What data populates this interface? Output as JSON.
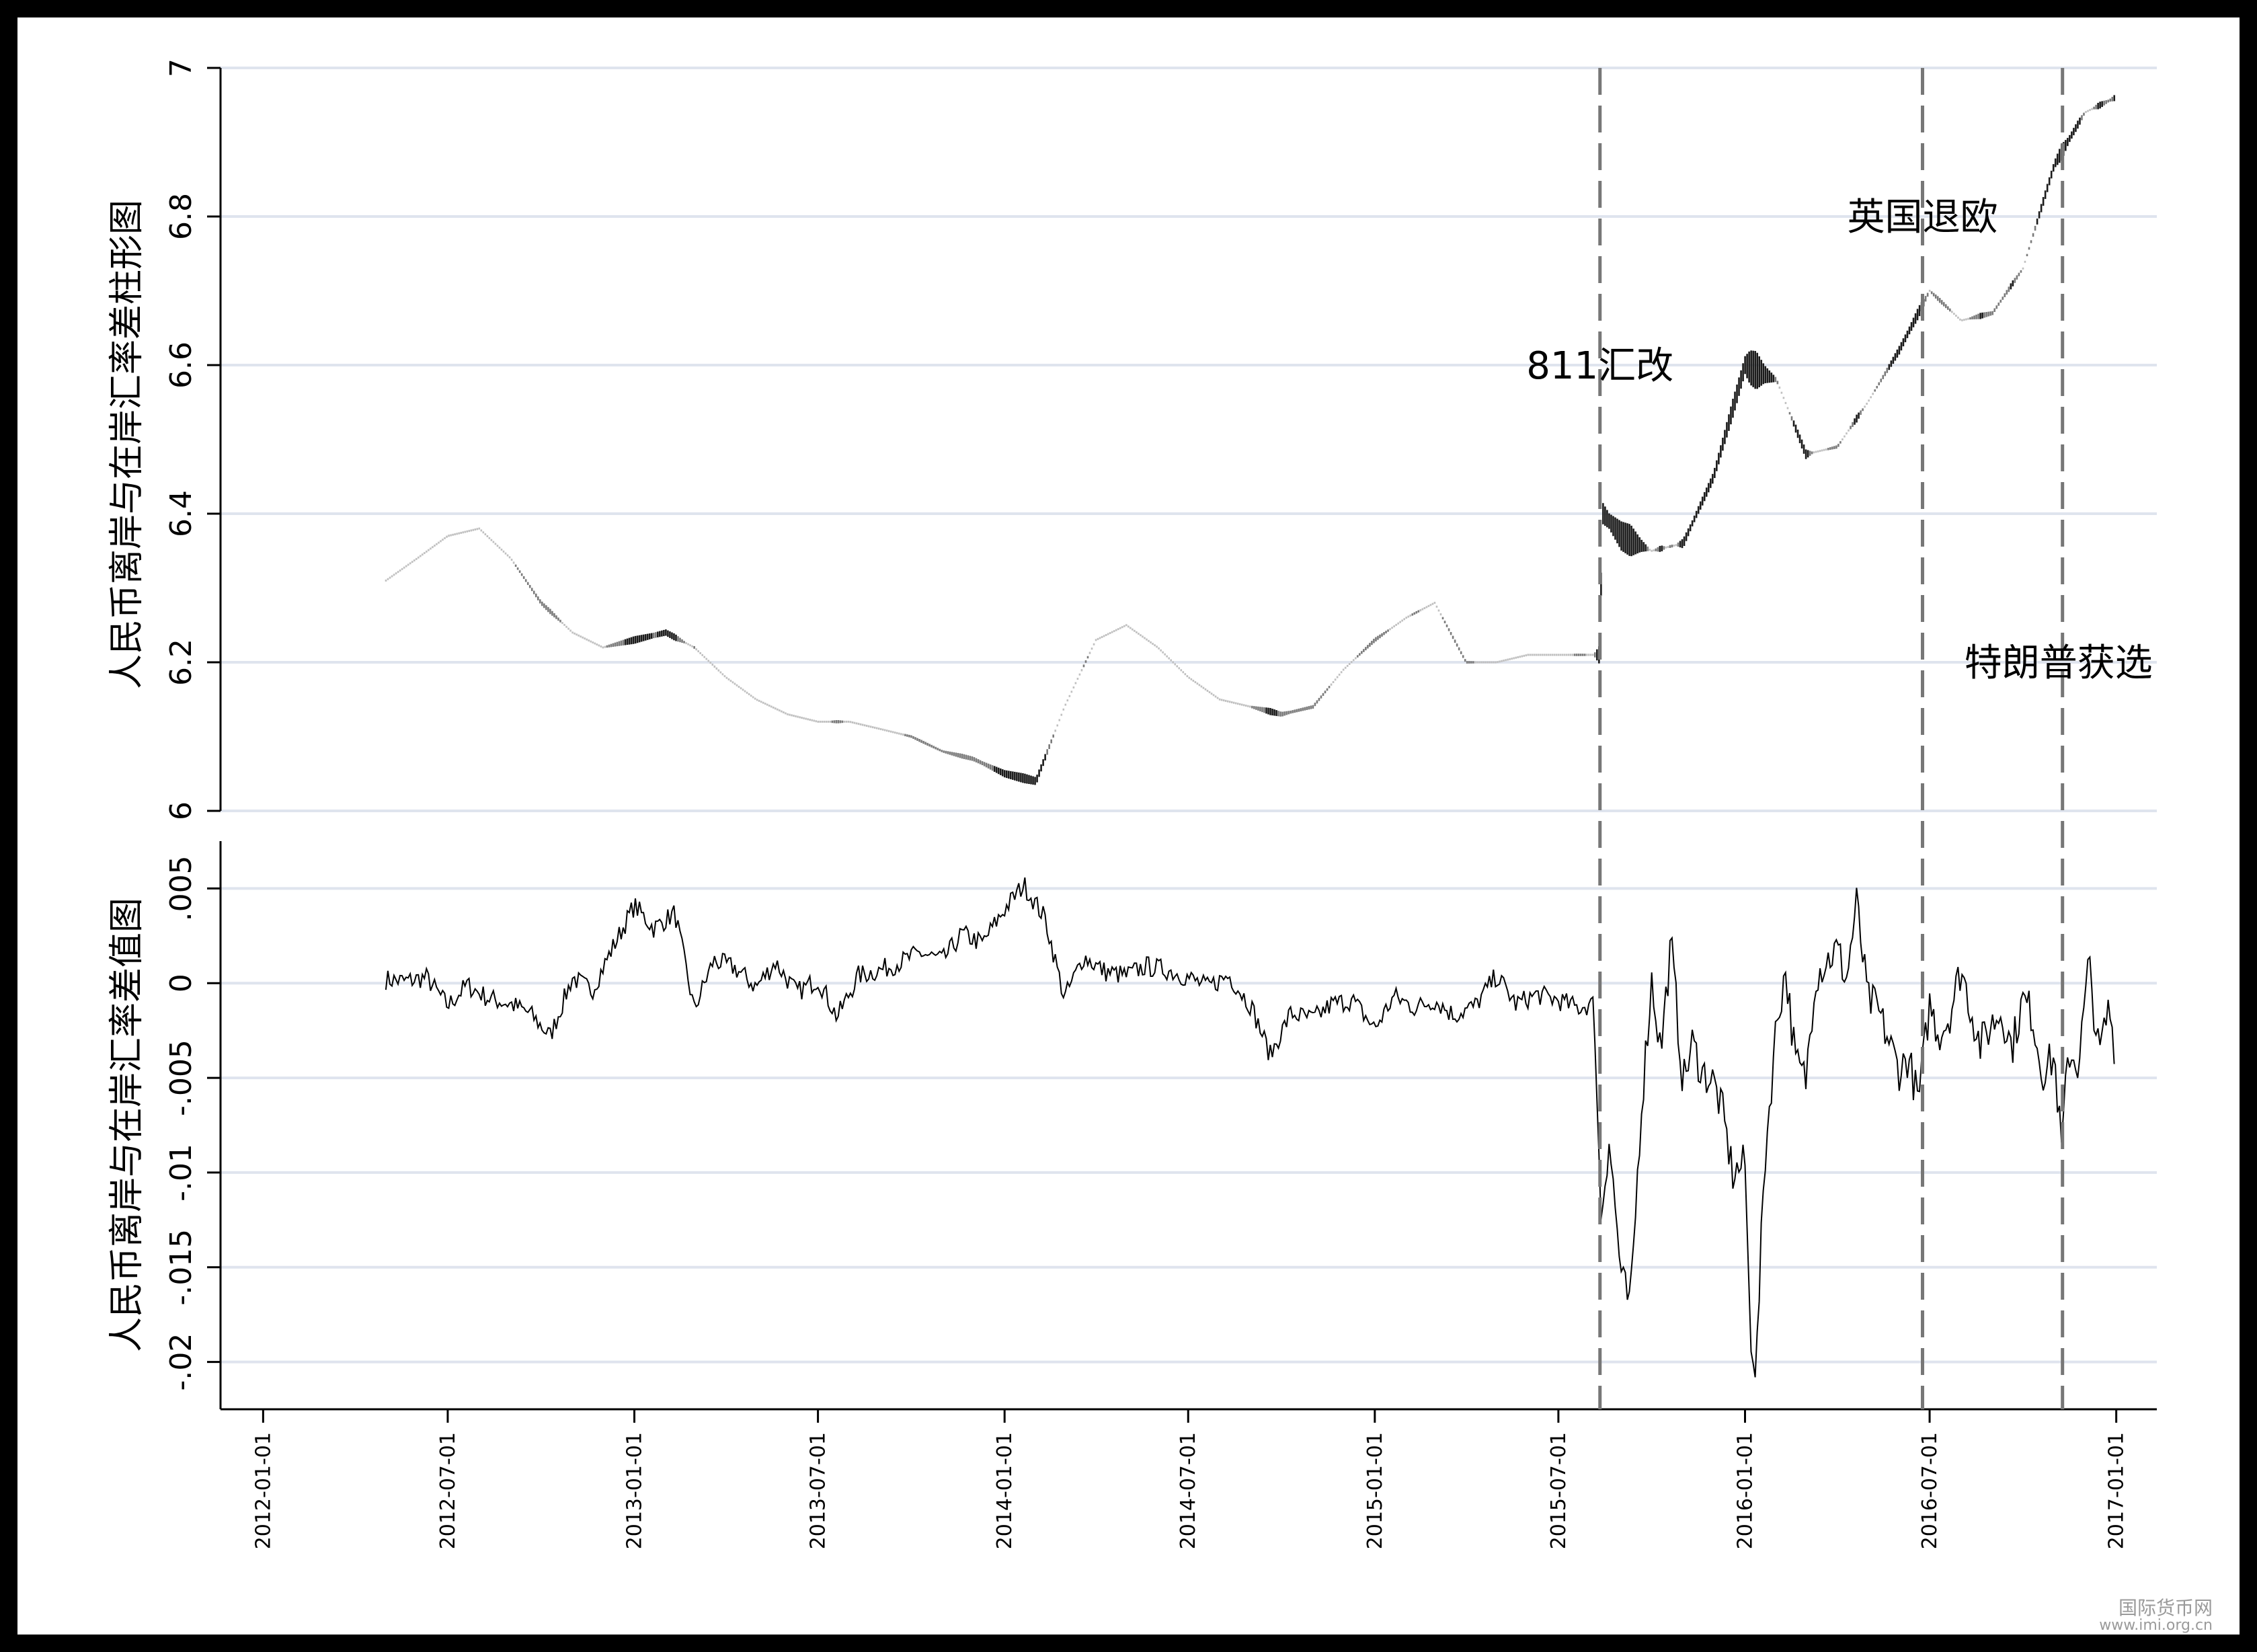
{
  "chart_data": [
    {
      "type": "bar",
      "ylabel": "人民币离岸与在岸汇率差柱形图",
      "ylim": [
        6,
        7
      ],
      "yticks": [
        6,
        6.2,
        6.4,
        6.6,
        6.8,
        7
      ],
      "ytick_labels": [
        "6",
        "6.2",
        "6.4",
        "6.6",
        "6.8",
        "7"
      ],
      "grid": true,
      "bar_colors": [
        "#1a1a1a",
        "#7a7a7a",
        "#c0c0c0"
      ],
      "x": [
        "2012-05-01",
        "2012-06-01",
        "2012-07-01",
        "2012-08-01",
        "2012-09-01",
        "2012-10-01",
        "2012-11-01",
        "2012-12-01",
        "2013-01-01",
        "2013-02-01",
        "2013-03-01",
        "2013-04-01",
        "2013-05-01",
        "2013-06-01",
        "2013-07-01",
        "2013-08-01",
        "2013-09-01",
        "2013-10-01",
        "2013-11-01",
        "2013-12-01",
        "2014-01-01",
        "2014-02-01",
        "2014-03-01",
        "2014-04-01",
        "2014-05-01",
        "2014-06-01",
        "2014-07-01",
        "2014-08-01",
        "2014-09-01",
        "2014-10-01",
        "2014-11-01",
        "2014-12-01",
        "2015-01-01",
        "2015-02-01",
        "2015-03-01",
        "2015-04-01",
        "2015-05-01",
        "2015-06-01",
        "2015-07-01",
        "2015-08-10",
        "2015-08-14",
        "2015-09-01",
        "2015-10-01",
        "2015-11-01",
        "2015-12-01",
        "2016-01-01",
        "2016-02-01",
        "2016-03-01",
        "2016-04-01",
        "2016-05-01",
        "2016-06-01",
        "2016-07-01",
        "2016-08-01",
        "2016-09-01",
        "2016-10-01",
        "2016-11-01",
        "2016-12-01",
        "2016-12-31"
      ],
      "values": [
        6.31,
        6.34,
        6.37,
        6.38,
        6.34,
        6.28,
        6.24,
        6.22,
        6.23,
        6.24,
        6.22,
        6.18,
        6.15,
        6.13,
        6.12,
        6.12,
        6.11,
        6.1,
        6.08,
        6.07,
        6.05,
        6.04,
        6.14,
        6.23,
        6.25,
        6.22,
        6.18,
        6.15,
        6.14,
        6.13,
        6.14,
        6.19,
        6.23,
        6.26,
        6.28,
        6.2,
        6.2,
        6.21,
        6.21,
        6.21,
        6.4,
        6.37,
        6.35,
        6.36,
        6.45,
        6.6,
        6.58,
        6.48,
        6.49,
        6.55,
        6.62,
        6.7,
        6.66,
        6.67,
        6.73,
        6.87,
        6.94,
        6.96
      ],
      "spread": [
        0.008,
        -0.002,
        0.001,
        0.003,
        -0.004,
        -0.006,
        -0.003,
        0.002,
        0.004,
        0.003,
        0.002,
        0.001,
        0.002,
        -0.001,
        -0.001,
        0.001,
        0.001,
        0.002,
        0.003,
        0.004,
        0.005,
        0.003,
        0.001,
        0.0,
        0.0,
        0.0,
        0.001,
        -0.002,
        -0.003,
        -0.002,
        -0.002,
        -0.002,
        -0.001,
        0.0,
        -0.001,
        -0.002,
        0.0,
        -0.001,
        -0.001,
        -0.001,
        -0.012,
        -0.005,
        0.001,
        -0.003,
        -0.005,
        -0.017,
        -0.004,
        0.0,
        -0.001,
        0.0,
        -0.003,
        -0.002,
        -0.001,
        -0.002,
        -0.001,
        -0.003,
        -0.002,
        -0.002
      ]
    },
    {
      "type": "line",
      "ylabel": "人民币离岸与在岸汇率差值图",
      "ylim": [
        -0.0225,
        0.0075
      ],
      "yticks": [
        -0.02,
        -0.015,
        -0.01,
        -0.005,
        0,
        0.005
      ],
      "ytick_labels": [
        "-.02",
        "-.015",
        "-.01",
        "-.005",
        "0",
        ".005"
      ],
      "grid": true,
      "line_color": "#000000",
      "x": [
        "2012-05-01",
        "2012-05-20",
        "2012-06-10",
        "2012-07-01",
        "2012-07-20",
        "2012-08-10",
        "2012-09-01",
        "2012-09-20",
        "2012-10-10",
        "2012-11-01",
        "2012-11-20",
        "2012-12-10",
        "2013-01-01",
        "2013-01-20",
        "2013-02-10",
        "2013-03-01",
        "2013-03-20",
        "2013-04-10",
        "2013-05-01",
        "2013-05-20",
        "2013-06-10",
        "2013-07-01",
        "2013-07-20",
        "2013-08-10",
        "2013-09-01",
        "2013-09-20",
        "2013-10-10",
        "2013-11-01",
        "2013-11-20",
        "2013-12-10",
        "2014-01-01",
        "2014-01-20",
        "2014-02-10",
        "2014-03-01",
        "2014-03-20",
        "2014-04-10",
        "2014-05-01",
        "2014-05-20",
        "2014-06-10",
        "2014-07-01",
        "2014-07-20",
        "2014-08-10",
        "2014-09-01",
        "2014-09-20",
        "2014-10-10",
        "2014-11-01",
        "2014-11-20",
        "2014-12-10",
        "2015-01-01",
        "2015-01-20",
        "2015-02-10",
        "2015-03-01",
        "2015-03-20",
        "2015-04-10",
        "2015-05-01",
        "2015-05-20",
        "2015-06-10",
        "2015-07-01",
        "2015-07-20",
        "2015-08-05",
        "2015-08-12",
        "2015-08-20",
        "2015-09-01",
        "2015-09-10",
        "2015-09-20",
        "2015-10-01",
        "2015-10-10",
        "2015-10-20",
        "2015-11-01",
        "2015-11-10",
        "2015-11-20",
        "2015-12-01",
        "2015-12-10",
        "2015-12-20",
        "2016-01-01",
        "2016-01-06",
        "2016-01-12",
        "2016-01-20",
        "2016-02-01",
        "2016-02-10",
        "2016-02-20",
        "2016-03-01",
        "2016-03-10",
        "2016-03-20",
        "2016-04-01",
        "2016-04-10",
        "2016-04-20",
        "2016-05-01",
        "2016-05-10",
        "2016-05-20",
        "2016-06-01",
        "2016-06-10",
        "2016-06-20",
        "2016-07-01",
        "2016-07-10",
        "2016-07-20",
        "2016-08-01",
        "2016-08-10",
        "2016-08-20",
        "2016-09-01",
        "2016-09-10",
        "2016-09-20",
        "2016-10-01",
        "2016-10-10",
        "2016-10-20",
        "2016-11-01",
        "2016-11-08",
        "2016-11-15",
        "2016-11-25",
        "2016-12-05",
        "2016-12-15",
        "2016-12-25",
        "2016-12-31"
      ],
      "values": [
        0.0002,
        0.0001,
        0.0003,
        -0.0012,
        -0.0001,
        -0.0008,
        -0.0011,
        -0.0016,
        -0.0028,
        0.0003,
        -0.0004,
        0.0018,
        0.0041,
        0.0029,
        0.0037,
        -0.0014,
        0.0012,
        0.0008,
        -0.0002,
        0.0011,
        -0.0005,
        0.0002,
        -0.0018,
        0.0004,
        0.0007,
        0.0011,
        0.0016,
        0.0012,
        0.0026,
        0.0021,
        0.0039,
        0.0052,
        0.0034,
        -0.0008,
        0.0014,
        0.0006,
        0.0004,
        0.0009,
        0.0007,
        0.0003,
        -0.0002,
        0.0004,
        -0.0012,
        -0.0038,
        -0.0016,
        -0.0019,
        -0.0011,
        -0.0009,
        -0.0024,
        -0.0007,
        -0.0013,
        -0.0009,
        -0.0017,
        -0.0012,
        0.0004,
        -0.0011,
        -0.0006,
        -0.0009,
        -0.0013,
        -0.0011,
        -0.0123,
        -0.0082,
        -0.0155,
        -0.0172,
        -0.0071,
        0.0002,
        -0.0036,
        0.0021,
        -0.0053,
        -0.0032,
        -0.0047,
        -0.0052,
        -0.0069,
        -0.0101,
        -0.0095,
        -0.0182,
        -0.0205,
        -0.0097,
        -0.0021,
        0.0007,
        -0.0042,
        -0.0051,
        0.0004,
        0.0011,
        0.0018,
        0.0002,
        0.0042,
        -0.0009,
        -0.0013,
        -0.0028,
        -0.0046,
        -0.0039,
        -0.0063,
        -0.0011,
        -0.0027,
        -0.0018,
        0.0008,
        -0.0012,
        -0.0033,
        -0.0021,
        -0.0015,
        -0.0034,
        -0.0009,
        -0.0016,
        -0.0047,
        -0.0039,
        -0.0088,
        -0.0036,
        -0.0043,
        0.0011,
        -0.0039,
        -0.0012,
        -0.0036
      ]
    }
  ],
  "xaxis": {
    "tick_values": [
      "2012-01-01",
      "2012-07-01",
      "2013-01-01",
      "2013-07-01",
      "2014-01-01",
      "2014-07-01",
      "2015-01-01",
      "2015-07-01",
      "2016-01-01",
      "2016-07-01",
      "2017-01-01"
    ],
    "tick_labels": [
      "2012-01-01",
      "2012-07-01",
      "2013-01-01",
      "2013-07-01",
      "2014-01-01",
      "2014-07-01",
      "2015-01-01",
      "2015-07-01",
      "2016-01-01",
      "2016-07-01",
      "2017-01-01"
    ],
    "range": [
      "2011-11-20",
      "2017-02-10"
    ]
  },
  "events": [
    {
      "date": "2015-08-11",
      "label": "811汇改",
      "anchor_y": 6.6,
      "anchor_side": "center"
    },
    {
      "date": "2016-06-24",
      "label": "英国退欧",
      "anchor_y": 6.8,
      "anchor_side": "center"
    },
    {
      "date": "2016-11-09",
      "label": "特朗普获选",
      "anchor_y": 6.2,
      "anchor_side": "right"
    }
  ],
  "colors": {
    "grid": "#dfe4ee",
    "event_line": "#777777",
    "axis": "#000000"
  },
  "watermark": {
    "text": "国际货币网",
    "url": "www.imi.org.cn"
  }
}
